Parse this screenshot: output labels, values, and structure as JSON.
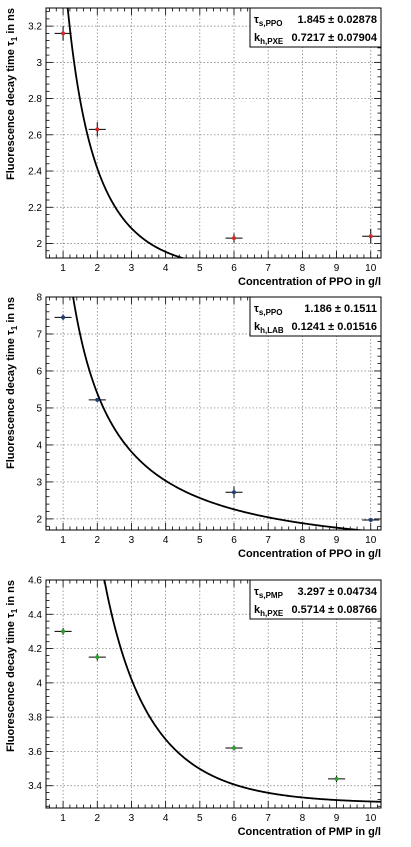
{
  "chart_data": [
    {
      "type": "scatter",
      "xlabel": "Concentration of PPO in g/l",
      "ylabel": "Fluorescence decay time τ",
      "ylabel_sub": "1",
      "ylabel_unit": " in ns",
      "xlim": [
        0.5,
        10.3
      ],
      "ylim": [
        1.92,
        3.3
      ],
      "xticks": [
        1,
        2,
        3,
        4,
        5,
        6,
        7,
        8,
        9,
        10
      ],
      "xtick_labels": [
        "1",
        "2",
        "3",
        "4",
        "5",
        "6",
        "7",
        "8",
        "9",
        "10"
      ],
      "yticks": [
        2.0,
        2.2,
        2.4,
        2.6,
        2.8,
        3.0,
        3.2
      ],
      "ytick_labels": [
        "2",
        "2.2",
        "2.4",
        "2.6",
        "2.8",
        "3",
        "3.2"
      ],
      "grid": true,
      "stats_box": [
        {
          "symbol": "τ",
          "sub": "s,PPO",
          "value": "1.845 ± 0.02878"
        },
        {
          "symbol": "k",
          "sub": "h,PXE",
          "value": "0.7217 ± 0.07904"
        }
      ],
      "stats_position": "top-right",
      "marker_color": "#d62728",
      "points": [
        {
          "x": 1,
          "y": 3.16,
          "xerr": 0.25,
          "yerr": 0.04
        },
        {
          "x": 2,
          "y": 2.63,
          "xerr": 0.25,
          "yerr": 0.04
        },
        {
          "x": 6,
          "y": 2.03,
          "xerr": 0.25,
          "yerr": 0.025
        },
        {
          "x": 10,
          "y": 2.04,
          "xerr": 0.25,
          "yerr": 0.04
        }
      ],
      "fit": {
        "tau": 1.845,
        "k": 0.7217
      }
    },
    {
      "type": "scatter",
      "xlabel": "Concentration of PPO in g/l",
      "ylabel": "Fluorescence decay time τ",
      "ylabel_sub": "1",
      "ylabel_unit": " in ns",
      "xlim": [
        0.5,
        10.3
      ],
      "ylim": [
        1.7,
        8.0
      ],
      "xticks": [
        1,
        2,
        3,
        4,
        5,
        6,
        7,
        8,
        9,
        10
      ],
      "xtick_labels": [
        "1",
        "2",
        "3",
        "4",
        "5",
        "6",
        "7",
        "8",
        "9",
        "10"
      ],
      "yticks": [
        2,
        3,
        4,
        5,
        6,
        7,
        8
      ],
      "ytick_labels": [
        "2",
        "3",
        "4",
        "5",
        "6",
        "7",
        "8"
      ],
      "grid": true,
      "stats_box": [
        {
          "symbol": "τ",
          "sub": "s,PPO",
          "value": "1.186 ± 0.1511"
        },
        {
          "symbol": "k",
          "sub": "h,LAB",
          "value": "0.1241 ± 0.01516"
        }
      ],
      "stats_position": "top-right",
      "marker_color": "#1f3f7a",
      "points": [
        {
          "x": 1,
          "y": 7.45,
          "xerr": 0.25,
          "yerr": 0.08
        },
        {
          "x": 2,
          "y": 5.22,
          "xerr": 0.25,
          "yerr": 0.05
        },
        {
          "x": 6,
          "y": 2.72,
          "xerr": 0.25,
          "yerr": 0.16
        },
        {
          "x": 10,
          "y": 1.97,
          "xerr": 0.25,
          "yerr": 0.03
        }
      ],
      "fit": {
        "tau": 1.186,
        "k": 0.1241
      }
    },
    {
      "type": "scatter",
      "xlabel": "Concentration of PMP in g/l",
      "ylabel": "Fluorescence decay time τ",
      "ylabel_sub": "1",
      "ylabel_unit": " in ns",
      "xlim": [
        0.5,
        10.3
      ],
      "ylim": [
        3.27,
        4.6
      ],
      "xticks": [
        1,
        2,
        3,
        4,
        5,
        6,
        7,
        8,
        9,
        10
      ],
      "xtick_labels": [
        "1",
        "2",
        "3",
        "4",
        "5",
        "6",
        "7",
        "8",
        "9",
        "10"
      ],
      "yticks": [
        3.4,
        3.6,
        3.8,
        4.0,
        4.2,
        4.4,
        4.6
      ],
      "ytick_labels": [
        "3.4",
        "3.6",
        "3.8",
        "4",
        "4.2",
        "4.4",
        "4.6"
      ],
      "grid": true,
      "stats_box": [
        {
          "symbol": "τ",
          "sub": "s,PMP",
          "value": "3.297 ± 0.04734"
        },
        {
          "symbol": "k",
          "sub": "h,PXE",
          "value": "0.5714 ± 0.08766"
        }
      ],
      "stats_position": "top-right",
      "marker_color": "#2ca02c",
      "points": [
        {
          "x": 1,
          "y": 4.3,
          "xerr": 0.25,
          "yerr": 0.02
        },
        {
          "x": 2,
          "y": 4.15,
          "xerr": 0.25,
          "yerr": 0.02
        },
        {
          "x": 6,
          "y": 3.62,
          "xerr": 0.25,
          "yerr": 0.015
        },
        {
          "x": 9,
          "y": 3.44,
          "xerr": 0.25,
          "yerr": 0.02
        }
      ],
      "fit": {
        "tau": 3.297,
        "k": 0.5714
      }
    }
  ]
}
